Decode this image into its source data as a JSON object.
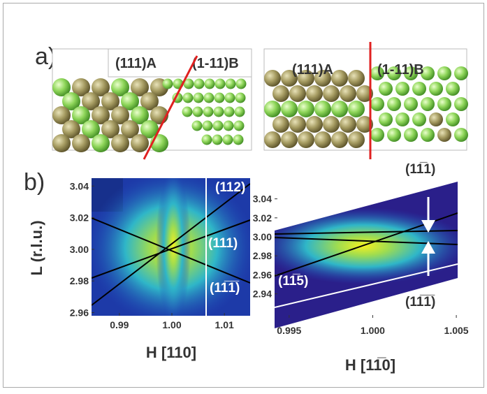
{
  "panel_a": {
    "label": "a)",
    "left": {
      "label_a": "(111)A",
      "label_b": "(1-11)B"
    },
    "right": {
      "label_a": "(111)A",
      "label_b": "(1-11)B"
    }
  },
  "panel_b": {
    "label": "b)",
    "left": {
      "ylabel": "L (r.l.u.)",
      "xlabel": "H [110]",
      "xlim": [
        0.9847,
        1.0149
      ],
      "ylim": [
        2.958,
        3.045
      ],
      "xticks": [
        0.99,
        {
          "value": 1,
          "label": "1.00"
        },
        1.01
      ],
      "yticks": [
        3.04,
        3.02,
        {
          "value": 3,
          "label": "3.00"
        },
        2.98,
        2.96
      ],
      "annotations": [
        "(112)",
        "(111)",
        "(11̅1̅)"
      ]
    },
    "right": {
      "xlabel": "H [11̅0]",
      "xlim": [
        0.99413,
        1.00508
      ],
      "ylim": [
        2.9147,
        3.0618
      ],
      "xticks": [
        0.995,
        {
          "value": 1,
          "label": "1.000"
        },
        1.005
      ],
      "yticks": [
        3.04,
        3.02,
        {
          "value": 3,
          "label": "3.00"
        },
        2.98,
        2.96,
        2.94
      ],
      "annotations": [
        "(11̅1)",
        "(11̅5)",
        "(11̅1̅)"
      ]
    }
  }
}
